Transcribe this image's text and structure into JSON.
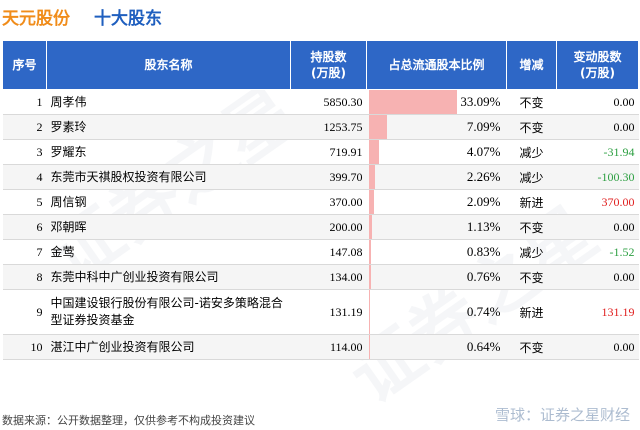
{
  "header": {
    "company": "天元股份",
    "subtitle": "十大股东"
  },
  "table": {
    "columns": [
      "序号",
      "股东名称",
      "持股数\n(万股)",
      "占总流通股本比例",
      "增减",
      "变动股数\n(万股)"
    ],
    "rows": [
      {
        "idx": "1",
        "name": "周孝伟",
        "holding": "5850.30",
        "pct": "33.09%",
        "pct_value": 33.09,
        "trend": "不变",
        "trend_type": "same",
        "change": "0.00",
        "change_color": "#000000"
      },
      {
        "idx": "2",
        "name": "罗素玲",
        "holding": "1253.75",
        "pct": "7.09%",
        "pct_value": 7.09,
        "trend": "不变",
        "trend_type": "same",
        "change": "0.00",
        "change_color": "#000000"
      },
      {
        "idx": "3",
        "name": "罗耀东",
        "holding": "719.91",
        "pct": "4.07%",
        "pct_value": 4.07,
        "trend": "减少",
        "trend_type": "down",
        "change": "-31.94",
        "change_color": "#2ea043"
      },
      {
        "idx": "4",
        "name": "东莞市天祺股权投资有限公司",
        "holding": "399.70",
        "pct": "2.26%",
        "pct_value": 2.26,
        "trend": "减少",
        "trend_type": "down",
        "change": "-100.30",
        "change_color": "#2ea043"
      },
      {
        "idx": "5",
        "name": "周信钢",
        "holding": "370.00",
        "pct": "2.09%",
        "pct_value": 2.09,
        "trend": "新进",
        "trend_type": "new",
        "change": "370.00",
        "change_color": "#e02020"
      },
      {
        "idx": "6",
        "name": "邓朝晖",
        "holding": "200.00",
        "pct": "1.13%",
        "pct_value": 1.13,
        "trend": "不变",
        "trend_type": "same",
        "change": "0.00",
        "change_color": "#000000"
      },
      {
        "idx": "7",
        "name": "金莺",
        "holding": "147.08",
        "pct": "0.83%",
        "pct_value": 0.83,
        "trend": "减少",
        "trend_type": "down",
        "change": "-1.52",
        "change_color": "#2ea043"
      },
      {
        "idx": "8",
        "name": "东莞中科中广创业投资有限公司",
        "holding": "134.00",
        "pct": "0.76%",
        "pct_value": 0.76,
        "trend": "不变",
        "trend_type": "same",
        "change": "0.00",
        "change_color": "#000000"
      },
      {
        "idx": "9",
        "name": "中国建设银行股份有限公司-诺安多策略混合型证券投资基金",
        "holding": "131.19",
        "pct": "0.74%",
        "pct_value": 0.74,
        "trend": "新进",
        "trend_type": "new",
        "change": "131.19",
        "change_color": "#e02020"
      },
      {
        "idx": "10",
        "name": "湛江中广创业投资有限公司",
        "holding": "114.00",
        "pct": "0.64%",
        "pct_value": 0.64,
        "trend": "不变",
        "trend_type": "same",
        "change": "0.00",
        "change_color": "#000000"
      }
    ]
  },
  "footer": {
    "source": "数据来源：公开数据整理，仅供参考不构成投资建议",
    "brand": "雪球：证券之星财经"
  },
  "watermark": "证券之星",
  "colors": {
    "header_bg": "#2e67c6",
    "bar": "#f7b2b2",
    "title_orange": "#f08c1a",
    "title_blue": "#1f5fbf",
    "decrease": "#2ea043",
    "increase": "#e02020"
  }
}
